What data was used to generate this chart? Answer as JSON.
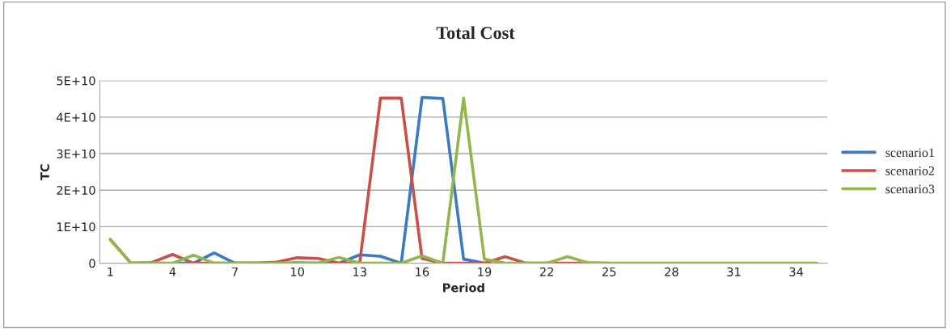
{
  "chart_data": {
    "type": "line",
    "title": "Total Cost",
    "xlabel": "Period",
    "ylabel": "TC",
    "categories": [
      "1",
      null,
      null,
      "4",
      null,
      null,
      "7",
      null,
      null,
      "10",
      null,
      null,
      "13",
      null,
      null,
      "16",
      null,
      null,
      "19",
      null,
      null,
      "22",
      null,
      null,
      "25",
      null,
      null,
      "28",
      null,
      null,
      "31",
      null,
      null,
      "34",
      null
    ],
    "series": [
      {
        "name": "scenario1",
        "color": "#3a7ac2",
        "values": [
          null,
          null,
          null,
          0,
          0,
          2800000000.0,
          0,
          null,
          null,
          null,
          null,
          0,
          2300000000.0,
          1900000000.0,
          0,
          45400000000.0,
          45100000000.0,
          1100000000.0,
          0,
          null,
          null,
          null,
          null,
          null,
          null,
          null,
          null,
          null,
          null,
          null,
          null,
          null,
          null,
          null,
          null
        ]
      },
      {
        "name": "scenario2",
        "color": "#c8504a",
        "values": [
          6500000000.0,
          0,
          200000000.0,
          2400000000.0,
          0,
          0,
          0,
          0,
          300000000.0,
          1500000000.0,
          1300000000.0,
          0,
          0,
          45200000000.0,
          45200000000.0,
          1300000000.0,
          0,
          0,
          0,
          1800000000.0,
          0,
          0,
          0,
          0,
          0,
          null,
          null,
          null,
          null,
          null,
          null,
          null,
          null,
          null,
          null
        ]
      },
      {
        "name": "scenario3",
        "color": "#93b64a",
        "values": [
          6500000000.0,
          0,
          100000000.0,
          0,
          2200000000.0,
          0,
          0,
          0,
          0,
          200000000.0,
          0,
          1600000000.0,
          0,
          0,
          0,
          2000000000.0,
          0,
          45200000000.0,
          1100000000.0,
          0,
          0,
          0,
          1800000000.0,
          100000000.0,
          0,
          0,
          0,
          0,
          0,
          0,
          0,
          0,
          0,
          0,
          0
        ]
      }
    ],
    "ylim": [
      0,
      50000000000.0
    ],
    "yticks": [
      0,
      {
        "value": 10000000000.0,
        "label": "1E+10"
      },
      {
        "value": 20000000000.0,
        "label": "2E+10"
      },
      {
        "value": 30000000000.0,
        "label": "3E+10"
      },
      {
        "value": 40000000000.0,
        "label": "4E+10"
      },
      {
        "value": 50000000000.0,
        "label": "5E+10"
      }
    ],
    "grid": "y",
    "legend": "right",
    "marker": "none",
    "line_style": "solid"
  }
}
